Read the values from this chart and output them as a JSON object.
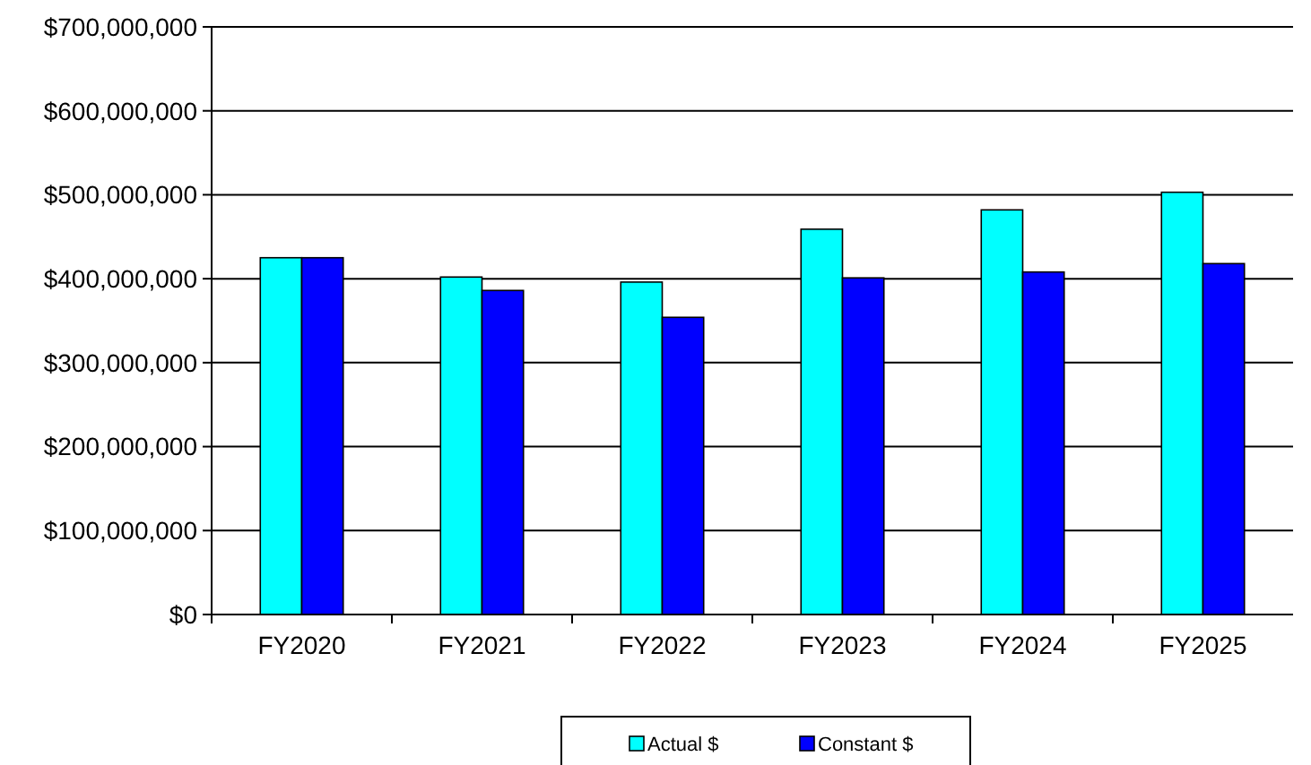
{
  "chart_data": {
    "type": "bar",
    "categories": [
      "FY2020",
      "FY2021",
      "FY2022",
      "FY2023",
      "FY2024",
      "FY2025"
    ],
    "series": [
      {
        "name": "Actual $",
        "color": "#00ffff",
        "values": [
          425000000,
          402000000,
          396000000,
          459000000,
          482000000,
          503000000
        ]
      },
      {
        "name": "Constant $",
        "color": "#0000ff",
        "values": [
          425000000,
          386000000,
          354000000,
          401000000,
          408000000,
          418000000
        ]
      }
    ],
    "ylim": [
      0,
      700000000
    ],
    "yticks": [
      {
        "value": 0,
        "label": "$0"
      },
      {
        "value": 100000000,
        "label": "$100,000,000"
      },
      {
        "value": 200000000,
        "label": "$200,000,000"
      },
      {
        "value": 300000000,
        "label": "$300,000,000"
      },
      {
        "value": 400000000,
        "label": "$400,000,000"
      },
      {
        "value": 500000000,
        "label": "$500,000,000"
      },
      {
        "value": 600000000,
        "label": "$600,000,000"
      },
      {
        "value": 700000000,
        "label": "$700,000,000"
      }
    ],
    "grid": "y",
    "legend": "bottom"
  }
}
